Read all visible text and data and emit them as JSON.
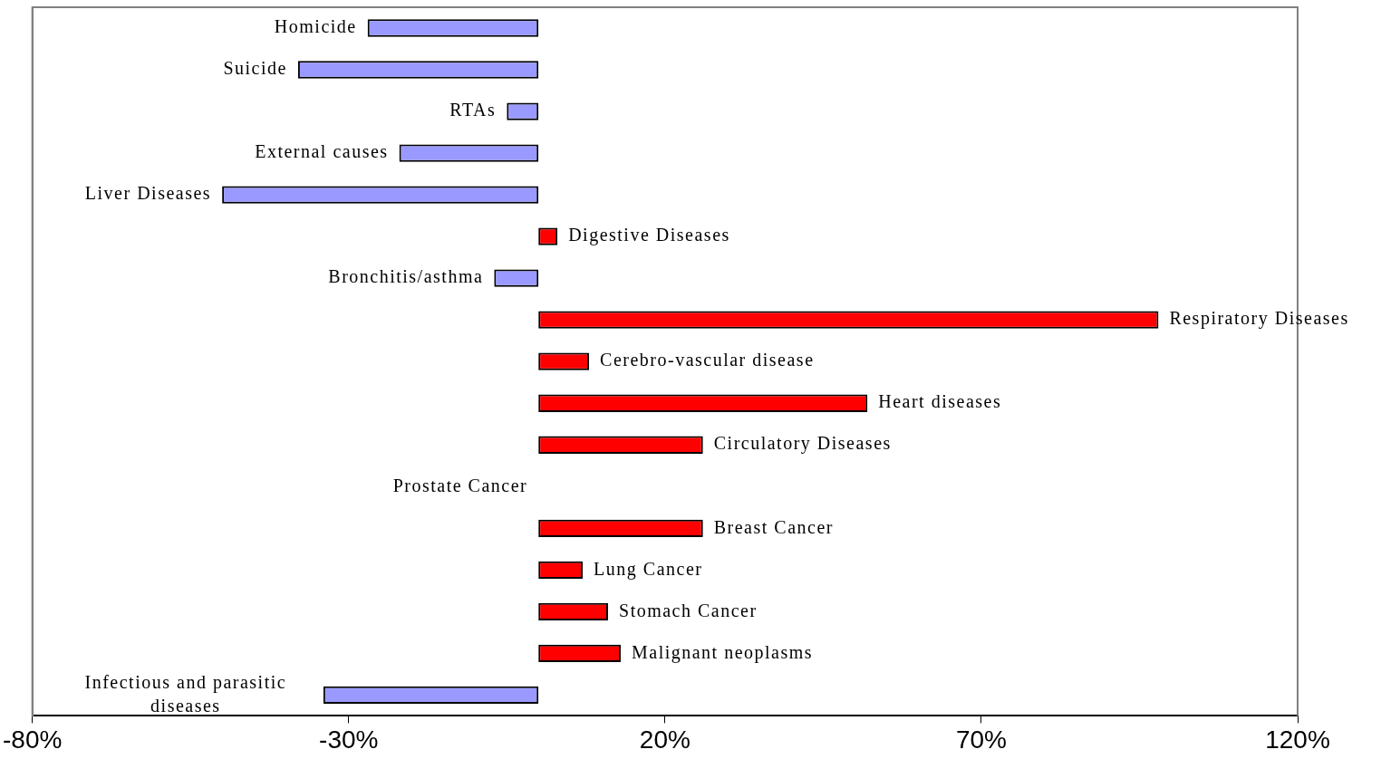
{
  "chart_data": {
    "type": "bar",
    "orientation": "horizontal",
    "categories": [
      "Homicide",
      "Suicide",
      "RTAs",
      "External causes",
      "Liver Diseases",
      "Digestive Diseases",
      "Bronchitis/asthma",
      "Respiratory Diseases",
      "Cerebro-vascular disease",
      "Heart diseases",
      "Circulatory Diseases",
      "Prostate Cancer",
      "Breast Cancer",
      "Lung Cancer",
      "Stomach Cancer",
      "Malignant neoplasms",
      "Infectious and parasitic diseases"
    ],
    "values": [
      -27,
      -38,
      -5,
      -22,
      -50,
      3,
      -7,
      98,
      8,
      52,
      26,
      0,
      26,
      7,
      11,
      13,
      -34
    ],
    "colors": [
      "#9999ff",
      "#9999ff",
      "#9999ff",
      "#9999ff",
      "#9999ff",
      "#ff0000",
      "#9999ff",
      "#ff0000",
      "#ff0000",
      "#ff0000",
      "#ff0000",
      "#ff0000",
      "#ff0000",
      "#ff0000",
      "#ff0000",
      "#ff0000",
      "#9999ff"
    ],
    "xlim": [
      -80,
      120
    ],
    "xticks": [
      {
        "value": -80,
        "label": "-80%"
      },
      {
        "value": -30,
        "label": "-30%"
      },
      {
        "value": 20,
        "label": "20%"
      },
      {
        "value": 70,
        "label": "70%"
      },
      {
        "value": 120,
        "label": "120%"
      }
    ],
    "grid": false,
    "legend": false
  }
}
